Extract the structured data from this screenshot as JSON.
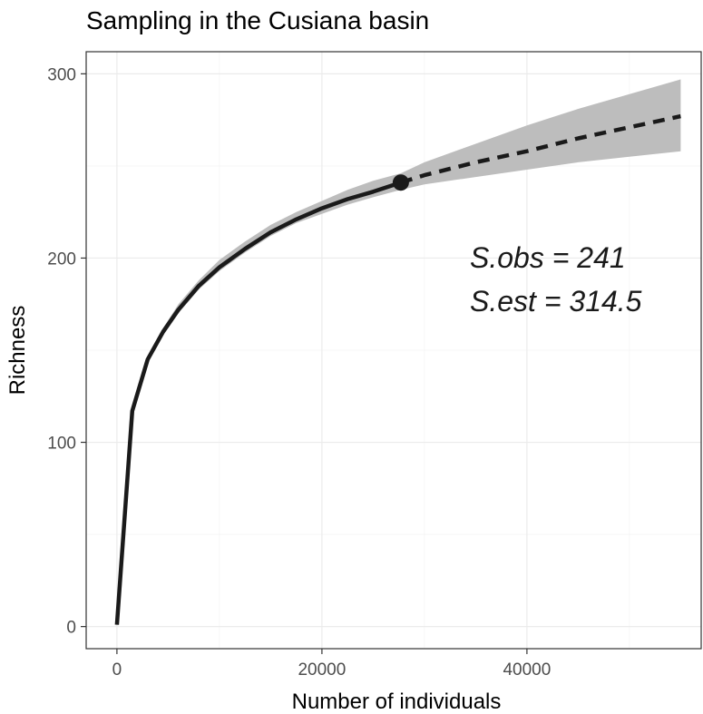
{
  "chart_data": {
    "type": "line",
    "title": "Sampling in the Cusiana basin",
    "xlabel": "Number of individuals",
    "ylabel": "Richness",
    "xlim": [
      -3000,
      57000
    ],
    "ylim": [
      -12,
      312
    ],
    "x_ticks": [
      0,
      20000,
      40000
    ],
    "x_tick_labels": [
      "0",
      "20000",
      "40000"
    ],
    "y_ticks": [
      0,
      100,
      200,
      300
    ],
    "y_tick_labels": [
      "0",
      "100",
      "200",
      "300"
    ],
    "grid": true,
    "series": [
      {
        "style": "solid",
        "x": [
          0,
          1500,
          3000,
          4500,
          6000,
          8000,
          10000,
          12500,
          15000,
          17500,
          20000,
          22500,
          25000,
          27697
        ],
        "y": [
          1,
          117,
          145,
          160,
          172,
          185,
          195,
          205,
          214,
          221,
          227,
          232,
          236,
          241
        ]
      },
      {
        "style": "dashed",
        "x": [
          27697,
          30000,
          35000,
          40000,
          45000,
          50000,
          55000
        ],
        "y": [
          241,
          245,
          252,
          258,
          265,
          271,
          277
        ]
      }
    ],
    "ribbon": {
      "x": [
        4500,
        6000,
        8000,
        10000,
        12500,
        15000,
        17500,
        20000,
        22500,
        25000,
        27697,
        30000,
        35000,
        40000,
        45000,
        50000,
        55000
      ],
      "lower": [
        158,
        170,
        183,
        193,
        203,
        212,
        219,
        224,
        229,
        233,
        237,
        240,
        244,
        248,
        252,
        255,
        258
      ],
      "upper": [
        162,
        175,
        188,
        199,
        209,
        218,
        225,
        231,
        237,
        242,
        246,
        252,
        262,
        272,
        281,
        289,
        297
      ]
    },
    "observed_point": {
      "x": 27697,
      "y": 241
    },
    "annotations": [
      "S.obs = 241",
      "S.est = 314.5"
    ],
    "colors": {
      "line": "#1a1a1a",
      "ribbon": "#bdbdbd",
      "grid": "#ebebeb",
      "panel_border": "#333333"
    }
  }
}
